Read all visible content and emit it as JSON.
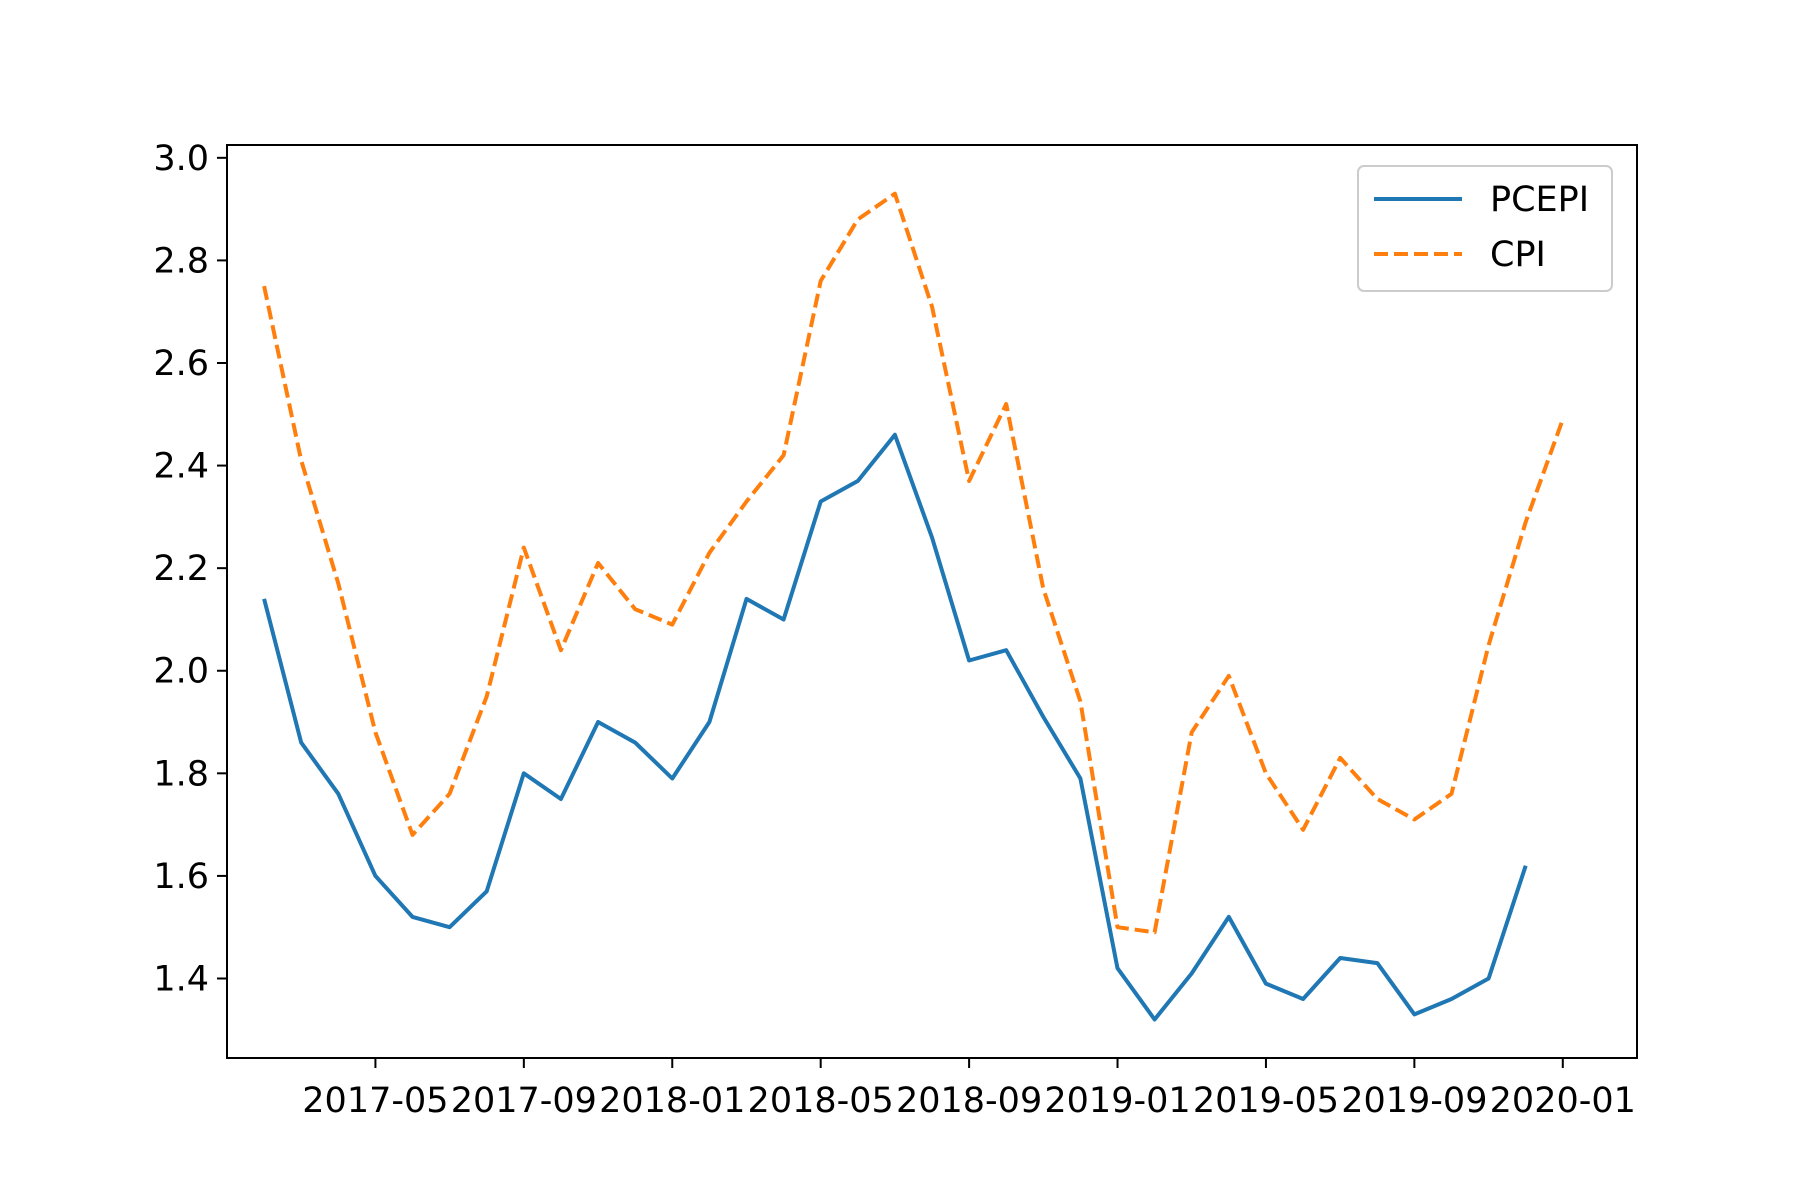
{
  "chart_data": {
    "type": "line",
    "title": "",
    "xlabel": "",
    "ylabel": "",
    "x": [
      "2017-02",
      "2017-03",
      "2017-04",
      "2017-05",
      "2017-06",
      "2017-07",
      "2017-08",
      "2017-09",
      "2017-10",
      "2017-11",
      "2017-12",
      "2018-01",
      "2018-02",
      "2018-03",
      "2018-04",
      "2018-05",
      "2018-06",
      "2018-07",
      "2018-08",
      "2018-09",
      "2018-10",
      "2018-11",
      "2018-12",
      "2019-01",
      "2019-02",
      "2019-03",
      "2019-04",
      "2019-05",
      "2019-06",
      "2019-07",
      "2019-08",
      "2019-09",
      "2019-10",
      "2019-11",
      "2019-12",
      "2020-01",
      "2020-02"
    ],
    "x_ticks": [
      "2017-05",
      "2017-09",
      "2018-01",
      "2018-05",
      "2018-09",
      "2019-01",
      "2019-05",
      "2019-09",
      "2020-01"
    ],
    "y_ticks": [
      "3.0",
      "2.8",
      "2.6",
      "2.4",
      "2.2",
      "2.0",
      "1.8",
      "1.6",
      "1.4"
    ],
    "ylim": [
      1.245,
      3.025
    ],
    "xlim": [
      "2017-01",
      "2020-03"
    ],
    "grid": false,
    "legend_position": "upper right",
    "series": [
      {
        "name": "PCEPI",
        "color": "#1f77b4",
        "style": "solid",
        "values": [
          2.14,
          1.86,
          1.76,
          1.6,
          1.52,
          1.5,
          1.57,
          1.8,
          1.75,
          1.9,
          1.86,
          1.79,
          1.9,
          2.14,
          2.1,
          2.33,
          2.37,
          2.46,
          2.26,
          2.02,
          2.04,
          1.91,
          1.79,
          1.42,
          1.32,
          1.41,
          1.52,
          1.39,
          1.36,
          1.44,
          1.43,
          1.33,
          1.36,
          1.4,
          1.62,
          null,
          null
        ]
      },
      {
        "name": "CPI",
        "color": "#ff7f0e",
        "style": "dashed",
        "values": [
          2.75,
          2.41,
          2.17,
          1.88,
          1.68,
          1.76,
          1.95,
          2.24,
          2.04,
          2.21,
          2.12,
          2.09,
          2.23,
          2.33,
          2.42,
          2.76,
          2.88,
          2.93,
          2.71,
          2.37,
          2.52,
          2.16,
          1.94,
          1.5,
          1.49,
          1.88,
          1.99,
          1.8,
          1.69,
          1.83,
          1.75,
          1.71,
          1.76,
          2.05,
          2.29,
          2.49,
          null
        ]
      }
    ]
  }
}
